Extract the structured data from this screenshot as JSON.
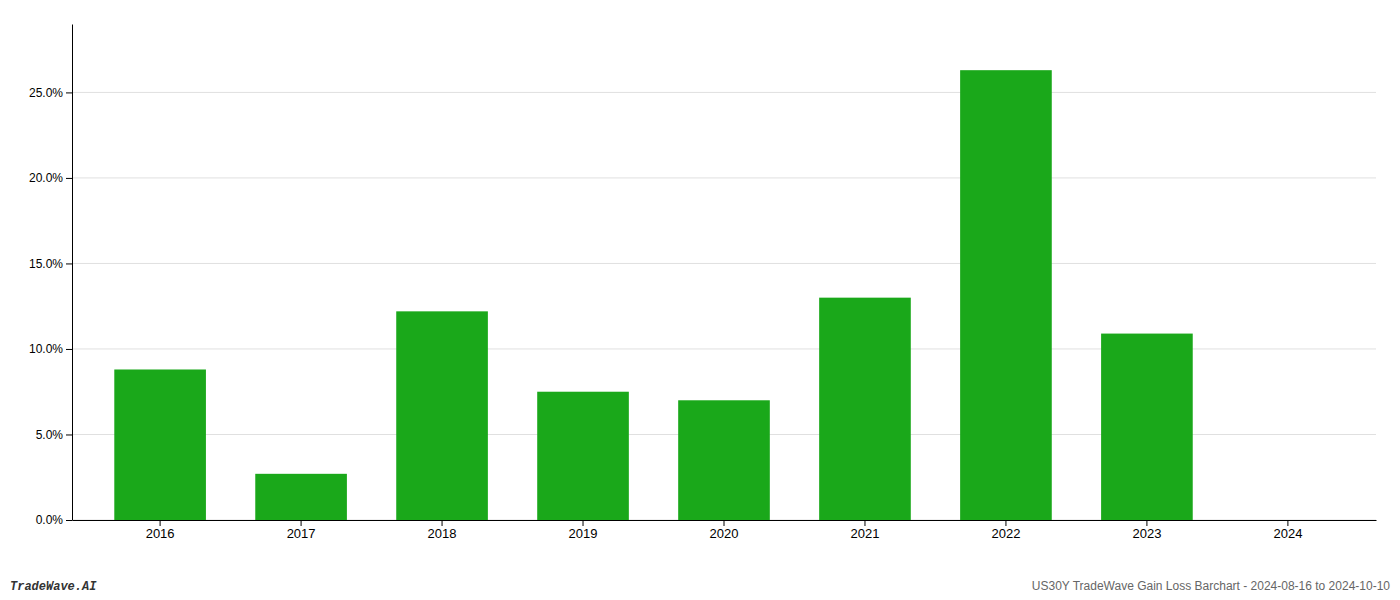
{
  "chart_data": {
    "type": "bar",
    "categories": [
      "2016",
      "2017",
      "2018",
      "2019",
      "2020",
      "2021",
      "2022",
      "2023",
      "2024"
    ],
    "values": [
      0.088,
      0.027,
      0.122,
      0.075,
      0.07,
      0.13,
      0.263,
      0.109,
      0.0
    ],
    "color": "#1aa81a",
    "ylim": [
      0,
      0.29
    ],
    "yticks": [
      {
        "value": 0.0,
        "label": "0.0%"
      },
      {
        "value": 0.05,
        "label": "5.0%"
      },
      {
        "value": 0.1,
        "label": "10.0%"
      },
      {
        "value": 0.15,
        "label": "15.0%"
      },
      {
        "value": 0.2,
        "label": "20.0%"
      },
      {
        "value": 0.25,
        "label": "25.0%"
      }
    ],
    "grid": true,
    "annotations": [
      "TradeWave.AI",
      "US30Y TradeWave Gain Loss Barchart - 2024-08-16 to 2024-10-10"
    ]
  }
}
